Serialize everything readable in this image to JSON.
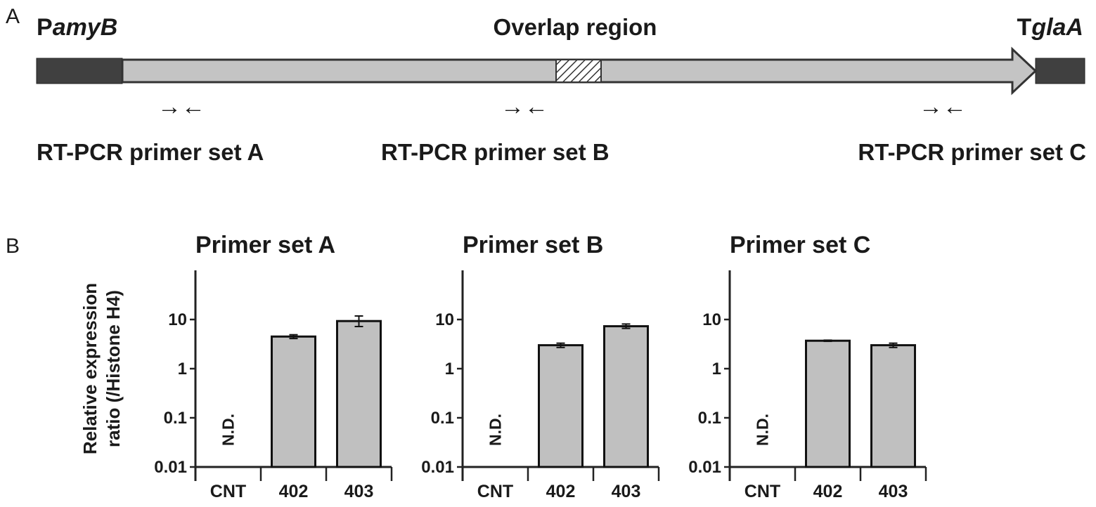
{
  "panel_a": {
    "letter": "A",
    "promoter": {
      "prefix": "P",
      "italic": "amyB"
    },
    "terminator": {
      "prefix": "T",
      "italic": "glaA"
    },
    "overlap_label": "Overlap region",
    "primer_labels": [
      "RT-PCR primer set A",
      "RT-PCR primer set B",
      "RT-PCR primer set C"
    ],
    "primer_glyph": "→←"
  },
  "panel_b": {
    "letter": "B",
    "ylabel_line1": "Relative expression",
    "ylabel_line2": "ratio (/Histone H4)"
  },
  "colors": {
    "bar_fill": "#c0c0c0",
    "flank_fill": "#404040",
    "gene_fill": "#c4c4c4",
    "outline": "#333333"
  },
  "chart_data": [
    {
      "type": "bar",
      "title": "Primer set A",
      "categories": [
        "CNT",
        "402",
        "403"
      ],
      "values": [
        null,
        4.5,
        9.3
      ],
      "error_low": [
        null,
        4.1,
        7.2
      ],
      "error_high": [
        null,
        4.9,
        11.8
      ],
      "annotations": [
        {
          "category": "CNT",
          "text": "N.D."
        }
      ],
      "yscale": "log",
      "ylim": [
        0.01,
        100
      ],
      "yticks": [
        "0.01",
        "0.1",
        "1",
        "10"
      ],
      "xlabel": "",
      "ylabel": "Relative expression ratio (/Histone H4)"
    },
    {
      "type": "bar",
      "title": "Primer set B",
      "categories": [
        "CNT",
        "402",
        "403"
      ],
      "values": [
        null,
        3.0,
        7.3
      ],
      "error_low": [
        null,
        2.7,
        6.6
      ],
      "error_high": [
        null,
        3.3,
        8.1
      ],
      "annotations": [
        {
          "category": "CNT",
          "text": "N.D."
        }
      ],
      "yscale": "log",
      "ylim": [
        0.01,
        100
      ],
      "yticks": [
        "0.01",
        "0.1",
        "1",
        "10"
      ],
      "xlabel": "",
      "ylabel": ""
    },
    {
      "type": "bar",
      "title": "Primer set C",
      "categories": [
        "CNT",
        "402",
        "403"
      ],
      "values": [
        null,
        3.7,
        3.0
      ],
      "error_low": [
        null,
        3.6,
        2.7
      ],
      "error_high": [
        null,
        3.8,
        3.3
      ],
      "annotations": [
        {
          "category": "CNT",
          "text": "N.D."
        }
      ],
      "yscale": "log",
      "ylim": [
        0.01,
        100
      ],
      "yticks": [
        "0.01",
        "0.1",
        "1",
        "10"
      ],
      "xlabel": "",
      "ylabel": ""
    }
  ]
}
